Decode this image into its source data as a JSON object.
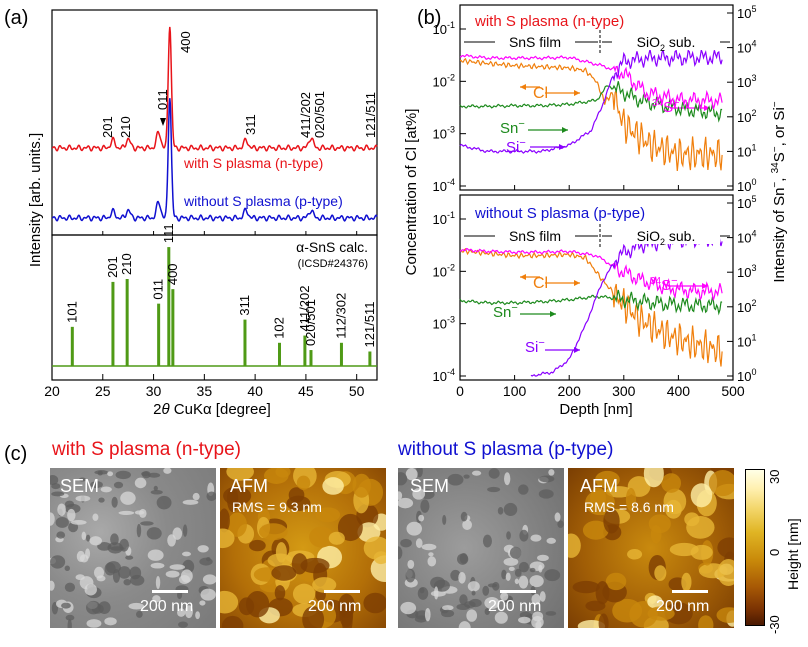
{
  "panels": {
    "a": "(a)",
    "b": "(b)",
    "c": "(c)"
  },
  "xrd": {
    "ylabel": "Intensity [arb. units.]",
    "xlabel_pre": "2",
    "xlabel_theta": "θ",
    "xlabel_post": " CuKα [degree]",
    "top_peaks": [
      "201",
      "210",
      "011",
      "400",
      "311",
      "411/202",
      "020/501",
      "121/511"
    ],
    "series_n": "with S plasma (n-type)",
    "series_p": "without S plasma (p-type)",
    "calc_title": "α-SnS calc.",
    "calc_ref": "(ICSD#24376)",
    "colors": {
      "n": "#e8141a",
      "p": "#1010d0",
      "calc": "#4f9a16"
    }
  },
  "chart_data": [
    {
      "type": "line",
      "title": "XRD patterns",
      "xlabel": "2θ CuKα [degree]",
      "ylabel": "Intensity [arb. units.]",
      "xlim": [
        20,
        52
      ],
      "xticks": [
        20,
        25,
        30,
        35,
        40,
        45,
        50
      ],
      "series": [
        {
          "name": "with S plasma (n-type)",
          "peaks": [
            {
              "x": 26.0,
              "h": 0.06
            },
            {
              "x": 27.5,
              "h": 0.07
            },
            {
              "x": 30.5,
              "h": 0.12
            },
            {
              "x": 31.6,
              "h": 0.95
            },
            {
              "x": 39.1,
              "h": 0.06
            },
            {
              "x": 45.5,
              "h": 0.08
            }
          ]
        },
        {
          "name": "without S plasma (p-type)",
          "peaks": [
            {
              "x": 26.0,
              "h": 0.05
            },
            {
              "x": 27.5,
              "h": 0.06
            },
            {
              "x": 30.5,
              "h": 0.12
            },
            {
              "x": 31.6,
              "h": 0.94
            },
            {
              "x": 39.1,
              "h": 0.06
            },
            {
              "x": 45.5,
              "h": 0.06
            }
          ]
        }
      ]
    },
    {
      "type": "bar",
      "title": "α-SnS calc. (ICSD#24376)",
      "xlabel": "2θ CuKα [degree]",
      "xlim": [
        20,
        52
      ],
      "xticks": [
        20,
        25,
        30,
        35,
        40,
        45,
        50
      ],
      "lines": [
        {
          "label": "101",
          "x": 22.0,
          "h": 0.27
        },
        {
          "label": "201",
          "x": 26.0,
          "h": 0.58
        },
        {
          "label": "210",
          "x": 27.4,
          "h": 0.6
        },
        {
          "label": "011",
          "x": 30.5,
          "h": 0.43
        },
        {
          "label": "111",
          "x": 31.5,
          "h": 0.82
        },
        {
          "label": "400",
          "x": 31.9,
          "h": 0.53
        },
        {
          "label": "311",
          "x": 39.0,
          "h": 0.32
        },
        {
          "label": "102",
          "x": 42.4,
          "h": 0.16
        },
        {
          "label": "411/202",
          "x": 44.9,
          "h": 0.21
        },
        {
          "label": "020/501",
          "x": 45.5,
          "h": 0.11
        },
        {
          "label": "112/302",
          "x": 48.5,
          "h": 0.16
        },
        {
          "label": "121/511",
          "x": 51.3,
          "h": 0.1
        }
      ]
    },
    {
      "type": "line",
      "title": "with S plasma (n-type)",
      "xlabel": "Depth [nm]",
      "ylabel": "Concentration of Cl [at%]",
      "y2label": "Intensity of Sn−, 34S−, or Si−",
      "xlim": [
        0,
        500
      ],
      "ylim_log": [
        0.0001,
        0.1
      ],
      "y2lim_log": [
        1,
        100000
      ],
      "boundary_nm": 270,
      "series": [
        {
          "name": "Cl",
          "color": "#f07f0c",
          "x": [
            0,
            50,
            100,
            150,
            200,
            230,
            250,
            265,
            280,
            300,
            350,
            400,
            450,
            480
          ],
          "y": [
            0.025,
            0.022,
            0.02,
            0.019,
            0.018,
            0.016,
            0.01,
            0.004,
            0.006,
            0.0015,
            0.0006,
            0.0004,
            0.0004,
            0.0004
          ]
        },
        {
          "name": "Sn−",
          "color": "#1d8a1d",
          "x": [
            0,
            50,
            100,
            150,
            200,
            250,
            270,
            290,
            330,
            380,
            430,
            480
          ],
          "y2": [
            200,
            200,
            210,
            210,
            230,
            300,
            800,
            600,
            300,
            200,
            150,
            130
          ]
        },
        {
          "name": "34S−",
          "color": "#ff00ff",
          "x": [
            0,
            50,
            100,
            150,
            200,
            260,
            300,
            340,
            400,
            450,
            480
          ],
          "y2": [
            6000,
            5000,
            5000,
            5000,
            5200,
            3000,
            1800,
            500,
            300,
            300,
            280
          ]
        },
        {
          "name": "Si−",
          "color": "#8a00ff",
          "x": [
            0,
            50,
            100,
            150,
            200,
            240,
            260,
            280,
            300,
            350,
            400,
            450,
            480
          ],
          "y2": [
            15,
            10,
            10,
            10,
            15,
            40,
            200,
            1500,
            4000,
            5000,
            5000,
            5200,
            5200
          ]
        }
      ]
    },
    {
      "type": "line",
      "title": "without S plasma (p-type)",
      "xlabel": "Depth [nm]",
      "ylabel": "Concentration of Cl [at%]",
      "y2label": "Intensity of Sn−, 34S−, or Si−",
      "xlim": [
        0,
        500
      ],
      "xticks": [
        0,
        100,
        200,
        300,
        400,
        500
      ],
      "ylim_log": [
        0.0001,
        0.1
      ],
      "y2lim_log": [
        1,
        100000
      ],
      "boundary_nm": 270,
      "series": [
        {
          "name": "Cl",
          "color": "#f07f0c",
          "x": [
            0,
            50,
            100,
            150,
            200,
            230,
            260,
            290,
            330,
            380,
            430,
            480
          ],
          "y": [
            0.025,
            0.022,
            0.02,
            0.02,
            0.021,
            0.018,
            0.007,
            0.003,
            0.0012,
            0.0006,
            0.0004,
            0.0003
          ]
        },
        {
          "name": "Sn−",
          "color": "#1d8a1d",
          "x": [
            0,
            50,
            100,
            150,
            200,
            250,
            280,
            320,
            380,
            430,
            480
          ],
          "y2": [
            150,
            130,
            130,
            140,
            160,
            200,
            180,
            150,
            120,
            110,
            110
          ]
        },
        {
          "name": "34S−",
          "color": "#ff00ff",
          "x": [
            0,
            50,
            100,
            150,
            200,
            250,
            290,
            330,
            380,
            430,
            480
          ],
          "y2": [
            4500,
            4000,
            3800,
            3800,
            4000,
            3000,
            1200,
            600,
            350,
            280,
            270
          ]
        },
        {
          "name": "Si−",
          "color": "#8a00ff",
          "x": [
            130,
            170,
            200,
            230,
            260,
            290,
            330,
            380,
            430,
            480
          ],
          "y2": [
            1,
            1.3,
            3,
            30,
            500,
            3000,
            6000,
            8000,
            9000,
            9000
          ]
        }
      ]
    }
  ],
  "sims": {
    "top_title": "with S plasma (n-type)",
    "bottom_title": "without S plasma (p-type)",
    "film": "SnS film",
    "sub_pre": "SiO",
    "sub_sub": "2",
    "sub_post": " sub.",
    "cl_label": "Cl",
    "sn_label": "Sn",
    "s_sup": "34",
    "s_label": "S",
    "si_label": "Si",
    "minus": "−",
    "ylabel": "Concentration of Cl [at%]",
    "y2label_a": "Intensity of Sn",
    "y2label_b": ", ",
    "y2label_c": "34",
    "y2label_d": "S",
    "y2label_e": ", or Si",
    "xlabel": "Depth [nm]",
    "xticks": [
      "0",
      "100",
      "200",
      "300",
      "400",
      "500"
    ],
    "yticks": [
      {
        "b": "10",
        "e": "-1"
      },
      {
        "b": "10",
        "e": "-2"
      },
      {
        "b": "10",
        "e": "-3"
      },
      {
        "b": "10",
        "e": "-4"
      }
    ],
    "y2ticks": [
      {
        "b": "10",
        "e": "5"
      },
      {
        "b": "10",
        "e": "4"
      },
      {
        "b": "10",
        "e": "3"
      },
      {
        "b": "10",
        "e": "2"
      },
      {
        "b": "10",
        "e": "1"
      },
      {
        "b": "10",
        "e": "0"
      }
    ]
  },
  "micro": {
    "n_title": "with S plasma (n-type)",
    "p_title": "without S plasma (p-type)",
    "sem": "SEM",
    "afm": "AFM",
    "rms_n": "RMS = 9.3 nm",
    "rms_p": "RMS = 8.6 nm",
    "scale": "200 nm",
    "cb_title": "Height [nm]",
    "cb_ticks": [
      "30",
      "0",
      "-30"
    ]
  }
}
